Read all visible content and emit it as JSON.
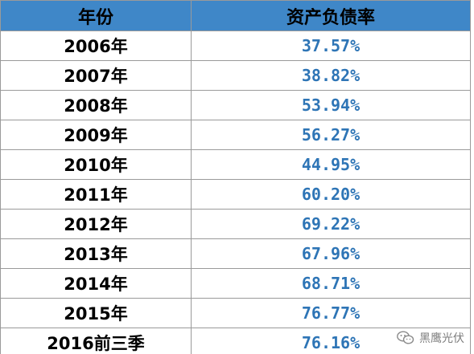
{
  "chart_data": {
    "type": "table",
    "columns": [
      "年份",
      "资产负债率"
    ],
    "rows": [
      {
        "year": "2006年",
        "ratio": "37.57%"
      },
      {
        "year": "2007年",
        "ratio": "38.82%"
      },
      {
        "year": "2008年",
        "ratio": "53.94%"
      },
      {
        "year": "2009年",
        "ratio": "56.27%"
      },
      {
        "year": "2010年",
        "ratio": "44.95%"
      },
      {
        "year": "2011年",
        "ratio": "60.20%"
      },
      {
        "year": "2012年",
        "ratio": "69.22%"
      },
      {
        "year": "2013年",
        "ratio": "67.96%"
      },
      {
        "year": "2014年",
        "ratio": "68.71%"
      },
      {
        "year": "2015年",
        "ratio": "76.77%"
      },
      {
        "year": "2016前三季",
        "ratio": "76.16%"
      }
    ],
    "colors": {
      "header_bg": "#3f87c8",
      "value_text": "#2e75b6",
      "grid": "#9a9a9a"
    }
  },
  "watermark": {
    "icon": "wechat-icon",
    "text": "黑鹰光伏"
  }
}
